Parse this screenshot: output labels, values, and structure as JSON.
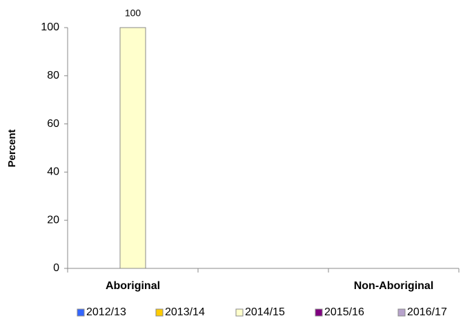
{
  "chart_data": {
    "type": "bar",
    "ylabel": "Percent",
    "categories": [
      "Aboriginal",
      null,
      "Non-Aboriginal"
    ],
    "series": [
      {
        "name": "2012/13",
        "color": "#3366ff",
        "values": [
          null,
          null,
          null
        ]
      },
      {
        "name": "2013/14",
        "color": "#ffcc00",
        "values": [
          null,
          null,
          null
        ]
      },
      {
        "name": "2014/15",
        "color": "#ffffcc",
        "values": [
          100,
          null,
          null
        ]
      },
      {
        "name": "2015/16",
        "color": "#800080",
        "values": [
          null,
          null,
          null
        ]
      },
      {
        "name": "2016/17",
        "color": "#b7a3cc",
        "values": [
          null,
          null,
          null
        ]
      }
    ],
    "ylim": [
      0,
      100
    ],
    "yticks": [
      0,
      20,
      40,
      60,
      80,
      100
    ],
    "grid": false,
    "legend": "bottom"
  }
}
